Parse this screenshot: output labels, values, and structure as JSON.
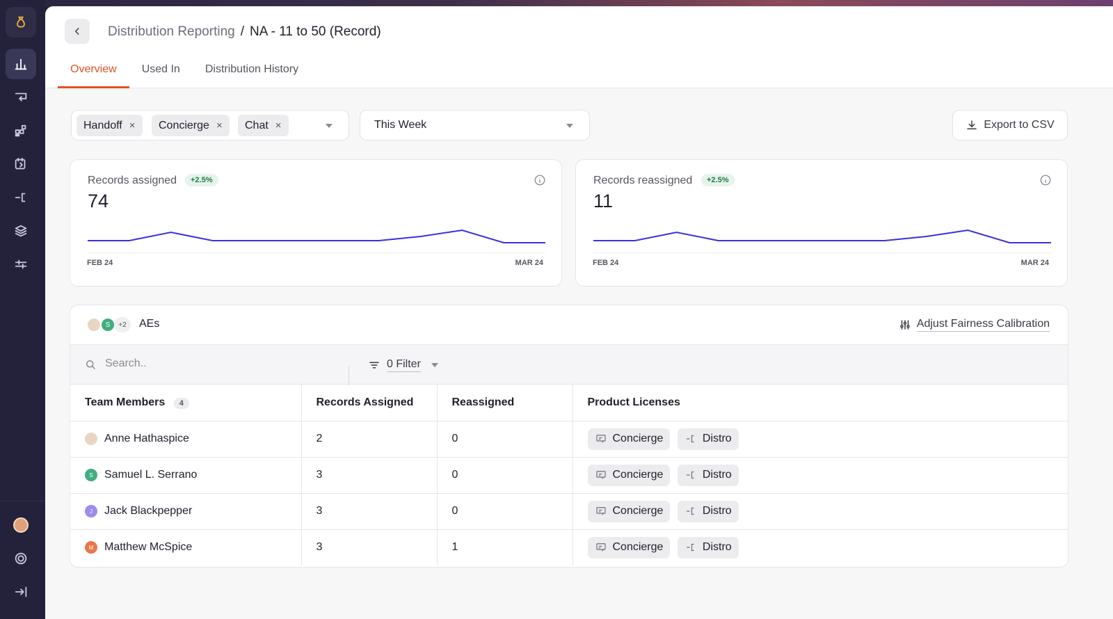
{
  "sidebar": {
    "logo_icon": "money-bag-icon",
    "items": [
      {
        "icon": "bar-chart-icon",
        "active": true
      },
      {
        "icon": "routing-icon"
      },
      {
        "icon": "apps-icon"
      },
      {
        "icon": "calendar-refresh-icon"
      },
      {
        "icon": "distro-icon"
      },
      {
        "icon": "layers-icon"
      },
      {
        "icon": "sliders-icon"
      }
    ],
    "bottom": [
      {
        "icon": "user-avatar"
      },
      {
        "icon": "help-icon"
      },
      {
        "icon": "expand-icon"
      }
    ]
  },
  "breadcrumb": {
    "parent": "Distribution Reporting",
    "separator": "/",
    "current": "NA - 11 to 50 (Record)"
  },
  "tabs": [
    {
      "label": "Overview",
      "active": true
    },
    {
      "label": "Used In"
    },
    {
      "label": "Distribution History"
    }
  ],
  "filters": {
    "chips": [
      "Handoff",
      "Concierge",
      "Chat"
    ],
    "chip_remove": "×",
    "date_range": "This Week",
    "export_label": "Export to CSV"
  },
  "metrics": [
    {
      "label": "Records assigned",
      "change": "+2.5%",
      "value": "74",
      "start": "FEB 24",
      "end": "MAR 24",
      "trend": [
        3,
        3,
        5,
        3,
        3,
        3,
        3,
        3,
        4,
        5.5,
        2.5,
        2.5
      ]
    },
    {
      "label": "Records reassigned",
      "change": "+2.5%",
      "value": "11",
      "start": "FEB 24",
      "end": "MAR 24",
      "trend": [
        3,
        3,
        5,
        3,
        3,
        3,
        3,
        3,
        4,
        5.5,
        2.5,
        2.5
      ]
    }
  ],
  "team": {
    "group_name": "AEs",
    "extra_count": "+2",
    "calibration_label": "Adjust Fairness Calibration",
    "search_placeholder": "Search..",
    "filter_label": "0 Filter",
    "columns": {
      "members": "Team Members",
      "member_count": "4",
      "assigned": "Records Assigned",
      "reassigned": "Reassigned",
      "licenses": "Product Licenses"
    },
    "rows": [
      {
        "name": "Anne Hathaspice",
        "initial": "",
        "avatar_color": "#e8d5c4",
        "assigned": "2",
        "reassigned": "0",
        "licenses": [
          "Concierge",
          "Distro"
        ]
      },
      {
        "name": "Samuel L. Serrano",
        "initial": "S",
        "avatar_color": "#3fae7e",
        "assigned": "3",
        "reassigned": "0",
        "licenses": [
          "Concierge",
          "Distro"
        ]
      },
      {
        "name": "Jack Blackpepper",
        "initial": "J",
        "avatar_color": "#9c8cf0",
        "assigned": "3",
        "reassigned": "0",
        "licenses": [
          "Concierge",
          "Distro"
        ]
      },
      {
        "name": "Matthew McSpice",
        "initial": "M",
        "avatar_color": "#e8774a",
        "assigned": "3",
        "reassigned": "1",
        "licenses": [
          "Concierge",
          "Distro"
        ]
      }
    ]
  },
  "colors": {
    "accent": "#e0541f",
    "chart_line": "#3b2fe0",
    "badge_green": "#1f7a45"
  }
}
